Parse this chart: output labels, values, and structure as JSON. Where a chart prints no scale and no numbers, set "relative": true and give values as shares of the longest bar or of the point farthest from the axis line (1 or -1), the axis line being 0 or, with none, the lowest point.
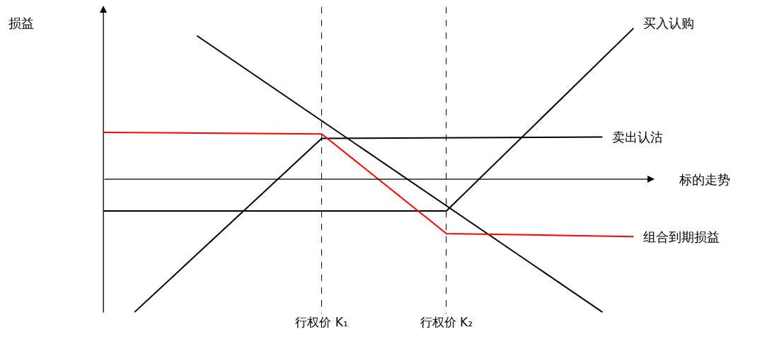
{
  "chart_data": {
    "type": "line",
    "relative": true,
    "annotations": [
      "损益"
    ],
    "categories": [
      null,
      null,
      null,
      null,
      null,
      null,
      null,
      "行权价 K₁",
      null,
      null,
      null,
      "行权价 K₂",
      null,
      null,
      null,
      null,
      null,
      null
    ],
    "series": [
      {
        "name": "买入认购",
        "color": "#000000",
        "values": [
          -0.21,
          null,
          null,
          null,
          null,
          null,
          null,
          null,
          null,
          null,
          null,
          -0.21,
          null,
          null,
          null,
          null,
          null,
          1
        ]
      },
      {
        "name": "卖出认沽",
        "color": "#000000",
        "values": [
          null,
          -0.88,
          null,
          null,
          null,
          null,
          null,
          0.27,
          null,
          null,
          null,
          null,
          null,
          null,
          null,
          null,
          0.28,
          null
        ]
      },
      {
        "color": "#000000",
        "values": [
          null,
          null,
          null,
          0.95,
          null,
          null,
          null,
          null,
          null,
          null,
          null,
          null,
          null,
          null,
          null,
          null,
          -0.88,
          null
        ]
      },
      {
        "name": "组合到期损益",
        "color": "#ff0000",
        "values": [
          0.31,
          null,
          null,
          null,
          null,
          null,
          null,
          0.3,
          null,
          null,
          null,
          -0.36,
          null,
          null,
          null,
          null,
          null,
          -0.38
        ]
      }
    ],
    "ref_lines": [
      {
        "axis": "y",
        "value": 0,
        "label": "标的走势",
        "color": "#000000"
      }
    ],
    "grid": "x",
    "legend": false,
    "marker": "none",
    "line_style": "solid"
  }
}
